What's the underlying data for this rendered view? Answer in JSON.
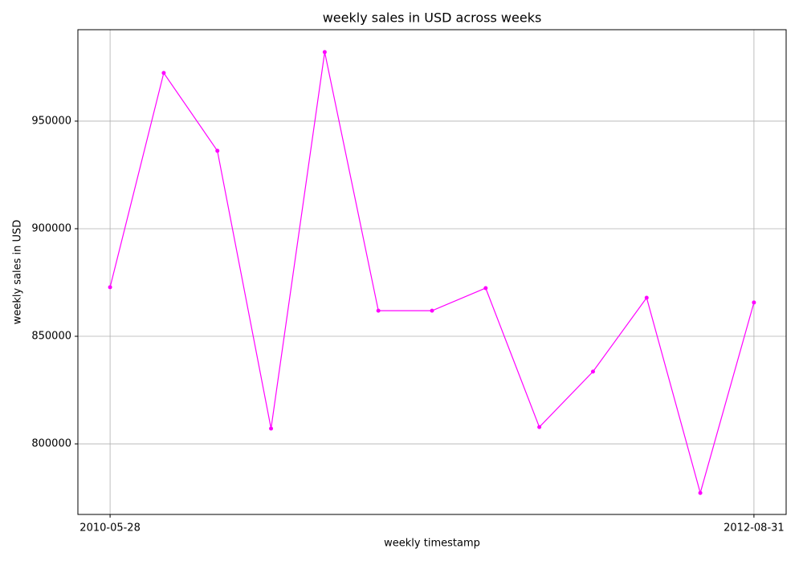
{
  "chart_data": {
    "type": "line",
    "title": "weekly sales in USD across weeks",
    "xlabel": "weekly timestamp",
    "ylabel": "weekly sales in USD",
    "categories": [
      "2010-05-28",
      null,
      null,
      null,
      null,
      null,
      null,
      null,
      null,
      null,
      null,
      null,
      "2012-08-31"
    ],
    "series": [
      {
        "name": "weekly sales",
        "color": "#ff00ff",
        "values": [
          872800,
          972400,
          936200,
          807100,
          982100,
          861900,
          861900,
          872400,
          807800,
          833600,
          867900,
          777200,
          865700
        ]
      }
    ],
    "ylim": [
      767200,
      992500
    ],
    "yticks": [
      800000,
      850000,
      900000,
      950000
    ],
    "grid": true
  }
}
